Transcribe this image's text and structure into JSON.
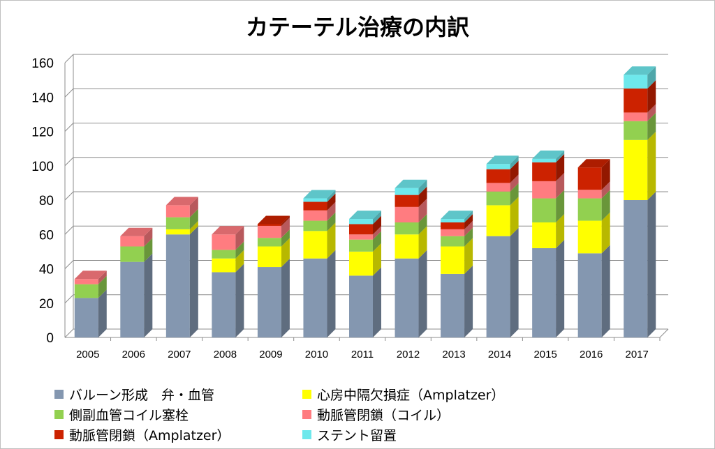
{
  "chart_data": {
    "type": "bar",
    "stacked": true,
    "style": "3d-column",
    "title": "カテーテル治療の内訳",
    "xlabel": "",
    "ylabel": "",
    "ylim": [
      0,
      160
    ],
    "yticks": [
      0,
      20,
      40,
      60,
      80,
      100,
      120,
      140,
      160
    ],
    "grid": true,
    "legend_position": "bottom",
    "categories": [
      "2005",
      "2006",
      "2007",
      "2008",
      "2009",
      "2010",
      "2011",
      "2012",
      "2013",
      "2014",
      "2015",
      "2016",
      "2017"
    ],
    "series": [
      {
        "name": "バルーン形成　弁・血管",
        "color": "#8497b0",
        "values": [
          23,
          44,
          60,
          38,
          41,
          46,
          36,
          46,
          37,
          59,
          52,
          49,
          80
        ]
      },
      {
        "name": "心房中隔欠損症（Amplatzer）",
        "color": "#ffff00",
        "values": [
          0,
          0,
          3,
          8,
          12,
          16,
          14,
          14,
          16,
          18,
          15,
          19,
          35
        ]
      },
      {
        "name": "側副血管コイル塞栓",
        "color": "#92d050",
        "values": [
          8,
          9,
          7,
          5,
          5,
          6,
          7,
          7,
          6,
          8,
          14,
          13,
          11
        ]
      },
      {
        "name": "動脈管閉鎖（コイル）",
        "color": "#ff7c80",
        "values": [
          3,
          6,
          7,
          9,
          7,
          6,
          3,
          9,
          4,
          5,
          10,
          5,
          5
        ]
      },
      {
        "name": "動脈管閉鎖（Amplatzer）",
        "color": "#cc2200",
        "values": [
          0,
          0,
          0,
          0,
          1,
          5,
          6,
          7,
          4,
          8,
          11,
          13,
          14
        ]
      },
      {
        "name": "ステント留置",
        "color": "#6ee8ec",
        "values": [
          0,
          0,
          0,
          0,
          0,
          2,
          3,
          4,
          2,
          3,
          2,
          0,
          8
        ]
      }
    ]
  }
}
